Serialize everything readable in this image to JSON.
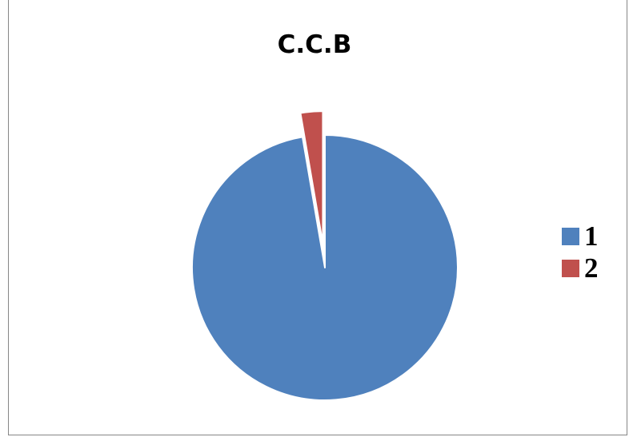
{
  "chart_data": {
    "type": "pie",
    "title": "C.C.B",
    "categories": [
      "1",
      "2"
    ],
    "values": [
      97.3,
      2.7
    ],
    "colors": [
      "#4F81BD",
      "#C0504D"
    ],
    "exploded": [
      "2"
    ],
    "legend_position": "right"
  }
}
